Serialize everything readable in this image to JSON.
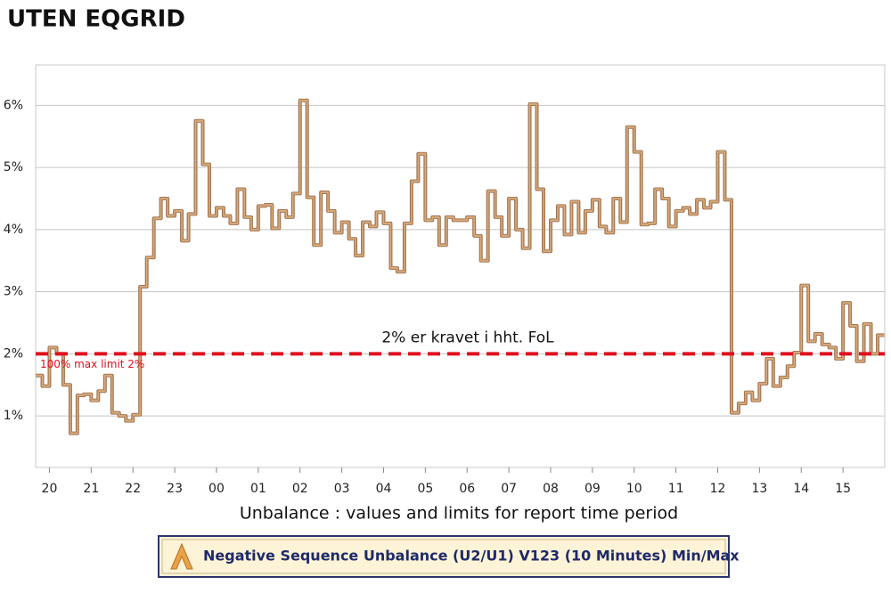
{
  "chart_data": {
    "type": "line",
    "title": "UTEN EQGRID",
    "x_label": "Unbalance : values and limits for report time period",
    "x": [
      19.67,
      19.83,
      20,
      20.17,
      20.33,
      20.5,
      20.67,
      20.83,
      21,
      21.17,
      21.33,
      21.5,
      21.67,
      21.83,
      22,
      22.17,
      22.33,
      22.5,
      22.67,
      22.83,
      23,
      23.17,
      23.33,
      23.5,
      23.67,
      23.83,
      24,
      24.17,
      24.33,
      24.5,
      24.67,
      24.83,
      25,
      25.17,
      25.33,
      25.5,
      25.67,
      25.83,
      26,
      26.17,
      26.33,
      26.5,
      26.67,
      26.83,
      27,
      27.17,
      27.33,
      27.5,
      27.67,
      27.83,
      28,
      28.17,
      28.33,
      28.5,
      28.67,
      28.83,
      29,
      29.17,
      29.33,
      29.5,
      29.67,
      29.83,
      30,
      30.17,
      30.33,
      30.5,
      30.67,
      30.83,
      31,
      31.17,
      31.33,
      31.5,
      31.67,
      31.83,
      32,
      32.17,
      32.33,
      32.5,
      32.67,
      32.83,
      33,
      33.17,
      33.33,
      33.5,
      33.67,
      33.83,
      34,
      34.17,
      34.33,
      34.5,
      34.67,
      34.83,
      35,
      35.17,
      35.33,
      35.5,
      35.67,
      35.83,
      36,
      36.17,
      36.33,
      36.5,
      36.67,
      36.83,
      37,
      37.17,
      37.33,
      37.5,
      37.67,
      37.83,
      38,
      38.17,
      38.33,
      38.5,
      38.67,
      38.83,
      39,
      39.17,
      39.33,
      39.5,
      39.67,
      39.83
    ],
    "series": [
      {
        "name": "Negative Sequence Unbalance (U2/U1) V123 (10 Minutes) Min/Max",
        "color": "#d8ab7c",
        "values": [
          1.65,
          1.48,
          2.1,
          2.0,
          1.5,
          0.72,
          1.33,
          1.35,
          1.25,
          1.4,
          1.65,
          1.05,
          1.0,
          0.92,
          1.02,
          3.08,
          3.55,
          4.18,
          4.5,
          4.22,
          4.3,
          3.82,
          4.25,
          5.75,
          5.05,
          4.22,
          4.35,
          4.22,
          4.1,
          4.65,
          4.2,
          4.0,
          4.38,
          4.4,
          4.02,
          4.3,
          4.2,
          4.58,
          6.08,
          4.52,
          3.75,
          4.6,
          4.3,
          3.95,
          4.12,
          3.85,
          3.58,
          4.12,
          4.05,
          4.28,
          4.1,
          3.38,
          3.32,
          4.1,
          4.78,
          5.22,
          4.15,
          4.2,
          3.75,
          4.2,
          4.15,
          4.15,
          4.2,
          3.9,
          3.5,
          4.62,
          4.2,
          3.9,
          4.5,
          4.0,
          3.7,
          6.02,
          4.65,
          3.65,
          4.15,
          4.38,
          3.92,
          4.45,
          3.95,
          4.3,
          4.48,
          4.05,
          3.95,
          4.5,
          4.12,
          5.65,
          5.25,
          4.08,
          4.1,
          4.65,
          4.5,
          4.05,
          4.3,
          4.35,
          4.25,
          4.48,
          4.35,
          4.45,
          5.25,
          4.48,
          1.05,
          1.2,
          1.38,
          1.25,
          1.52,
          1.92,
          1.48,
          1.62,
          1.8,
          2.02,
          3.1,
          2.2,
          2.32,
          2.15,
          2.1,
          1.92,
          2.82,
          2.45,
          1.88,
          2.48,
          2.0,
          2.3
        ]
      }
    ],
    "limit": {
      "value": 2,
      "label": "100% max limit 2%",
      "color": "#e0101e"
    },
    "annotation": "2% er kravet i hht. FoL",
    "xlim": [
      19.67,
      40.0
    ],
    "xticks": [
      20,
      21,
      22,
      23,
      {
        "value": 24,
        "label": "00"
      },
      {
        "value": 25,
        "label": "01"
      },
      {
        "value": 26,
        "label": "02"
      },
      {
        "value": 27,
        "label": "03"
      },
      {
        "value": 28,
        "label": "04"
      },
      {
        "value": 29,
        "label": "05"
      },
      {
        "value": 30,
        "label": "06"
      },
      {
        "value": 31,
        "label": "07"
      },
      {
        "value": 32,
        "label": "08"
      },
      {
        "value": 33,
        "label": "09"
      },
      {
        "value": 34,
        "label": "10"
      },
      {
        "value": 35,
        "label": "11"
      },
      {
        "value": 36,
        "label": "12"
      },
      {
        "value": 37,
        "label": "13"
      },
      {
        "value": 38,
        "label": "14"
      },
      {
        "value": 39,
        "label": "15"
      }
    ],
    "ylim": [
      0.17,
      6.65
    ],
    "yticks": [
      {
        "value": 1,
        "label": "1%"
      },
      {
        "value": 2,
        "label": "2%"
      },
      {
        "value": 3,
        "label": "3%"
      },
      {
        "value": 4,
        "label": "4%"
      },
      {
        "value": 5,
        "label": "5%"
      },
      {
        "value": 6,
        "label": "6%"
      }
    ],
    "grid": true
  }
}
